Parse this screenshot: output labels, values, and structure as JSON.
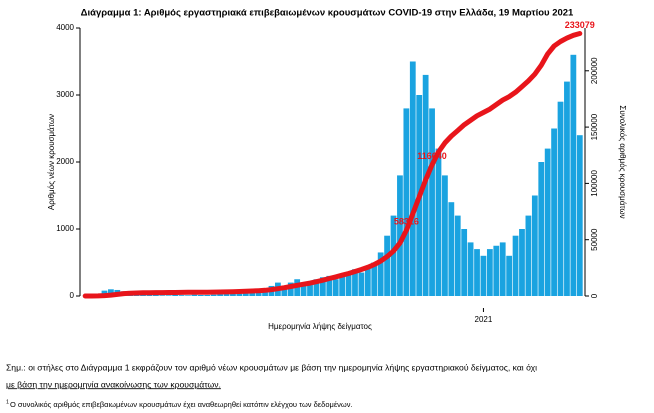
{
  "chart_data": {
    "type": "combo",
    "title": "Διάγραμμα 1: Αριθμός εργαστηριακά επιβεβαιωμένων κρουσμάτων COVID-19 στην Ελλάδα, 19 Μαρτίου 2021",
    "x_label": "Ημερομηνία λήψης δείγματος",
    "y_label": "Αριθμός νέων κρουσμάτων",
    "y2_label": "Συνολικός αριθμός κρουσμάτων",
    "categories": [
      null,
      null,
      null,
      null,
      null,
      null,
      null,
      null,
      null,
      null,
      null,
      null,
      null,
      null,
      null,
      null,
      null,
      null,
      null,
      null,
      null,
      null,
      null,
      null,
      null,
      null,
      null,
      null,
      null,
      null,
      null,
      null,
      null,
      null,
      null,
      null,
      null,
      null,
      null,
      null,
      null,
      null,
      null,
      null,
      null,
      null,
      null,
      null,
      null,
      null,
      null,
      null,
      null,
      null,
      null,
      null,
      null,
      null,
      null,
      null,
      null,
      null,
      "2021",
      null,
      null,
      null,
      null,
      null,
      null,
      null,
      null,
      null,
      null,
      null,
      null,
      null,
      null,
      null
    ],
    "ylim": [
      0,
      4000
    ],
    "yticks": [
      0,
      1000,
      2000,
      3000,
      4000
    ],
    "y2lim": [
      0,
      238000
    ],
    "y2ticks": [
      0,
      50000,
      100000,
      150000,
      200000
    ],
    "series": [
      {
        "type": "bar",
        "color": "#1aa3e0",
        "values": [
          3,
          10,
          30,
          80,
          100,
          90,
          70,
          60,
          50,
          30,
          20,
          15,
          10,
          10,
          15,
          12,
          10,
          20,
          15,
          15,
          20,
          25,
          30,
          40,
          35,
          40,
          50,
          80,
          100,
          150,
          200,
          150,
          200,
          250,
          180,
          220,
          250,
          280,
          300,
          250,
          320,
          350,
          400,
          350,
          420,
          500,
          650,
          900,
          1200,
          1800,
          2800,
          3500,
          3000,
          3300,
          2800,
          2200,
          1800,
          1400,
          1200,
          1000,
          800,
          700,
          600,
          700,
          750,
          800,
          600,
          900,
          1000,
          1200,
          1500,
          2000,
          2200,
          2500,
          2900,
          3200,
          3600,
          2400
        ]
      },
      {
        "type": "line",
        "axis": "y2",
        "color": "#e8151b",
        "values": [
          0,
          10,
          100,
          350,
          800,
          1400,
          2100,
          2500,
          2700,
          2850,
          2950,
          3000,
          3050,
          3100,
          3150,
          3200,
          3250,
          3300,
          3350,
          3400,
          3450,
          3550,
          3650,
          3800,
          4000,
          4200,
          4400,
          4700,
          5100,
          5700,
          6500,
          7400,
          8400,
          9500,
          10500,
          11500,
          12700,
          14000,
          15500,
          17000,
          18500,
          20000,
          21800,
          23500,
          25500,
          28000,
          31000,
          35000,
          40000,
          47000,
          58316,
          73000,
          88000,
          103000,
          116640,
          128000,
          136000,
          142000,
          147000,
          152000,
          156000,
          160000,
          163000,
          166000,
          170000,
          174000,
          177000,
          181000,
          186000,
          191000,
          197000,
          205000,
          215000,
          222000,
          226000,
          229000,
          231500,
          233079
        ],
        "value_labels": [
          null,
          null,
          null,
          null,
          null,
          null,
          null,
          null,
          null,
          null,
          null,
          null,
          null,
          null,
          null,
          null,
          null,
          null,
          null,
          null,
          null,
          null,
          null,
          null,
          null,
          null,
          null,
          null,
          null,
          null,
          null,
          null,
          null,
          null,
          null,
          null,
          null,
          null,
          null,
          null,
          null,
          null,
          null,
          null,
          null,
          null,
          null,
          null,
          null,
          null,
          "58316",
          null,
          null,
          null,
          "116640",
          null,
          null,
          null,
          null,
          null,
          null,
          null,
          null,
          null,
          null,
          null,
          null,
          null,
          null,
          null,
          null,
          null,
          null,
          null,
          null,
          null,
          null,
          "233079"
        ]
      }
    ],
    "notes": [
      "Σημ.: οι στήλες στο Διάγραμμα 1 εκφράζουν τον αριθμό νέων κρουσμάτων με βάση την ημερομηνία λήψης εργαστηριακού δείγματος, και όχι",
      "με βάση την ημερομηνία ανακοίνωσης των κρουσμάτων."
    ],
    "footnote_mark": "1",
    "footnote": "Ο συνολικός αριθμός επιβεβαιωμένων κρουσμάτων έχει αναθεωρηθεί κατόπιν ελέγχου των δεδομένων."
  }
}
